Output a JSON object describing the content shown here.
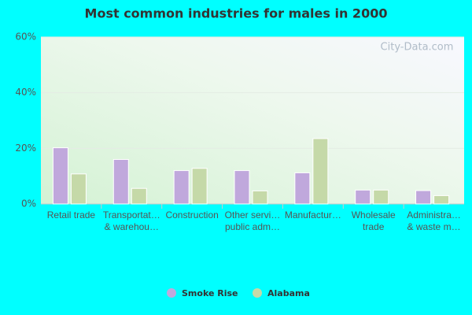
{
  "chart_data": {
    "type": "bar",
    "title": "Most common industries for males in 2000",
    "watermark": "City-Data.com",
    "categories": [
      "Retail trade",
      "Transportat…\n& warehou…",
      "Construction",
      "Other servi…\npublic adm…",
      "Manufactur…",
      "Wholesale\ntrade",
      "Administra…\n& waste m…"
    ],
    "series": [
      {
        "name": "Smoke Rise",
        "color": "#c0a8dc",
        "values": [
          20.2,
          16,
          12,
          12,
          11.2,
          5,
          4.8
        ]
      },
      {
        "name": "Alabama",
        "color": "#c5d9a8",
        "values": [
          10.8,
          5.6,
          12.8,
          4.7,
          23.5,
          5,
          3
        ]
      }
    ],
    "ylim": [
      0,
      60
    ],
    "yticks": [
      {
        "value": 0,
        "label": "0%"
      },
      {
        "value": 20,
        "label": "20%"
      },
      {
        "value": 40,
        "label": "40%"
      },
      {
        "value": 60,
        "label": "60%"
      }
    ],
    "grid": true
  }
}
